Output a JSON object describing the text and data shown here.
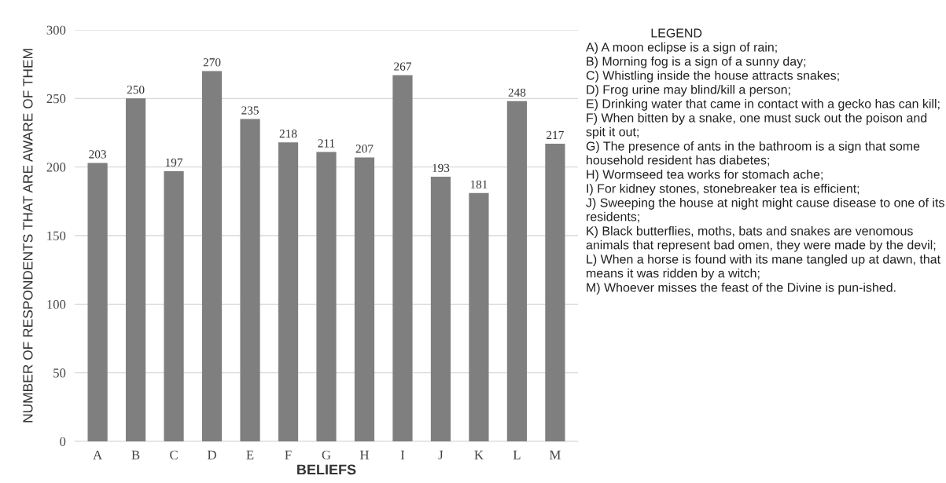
{
  "chart_data": {
    "type": "bar",
    "xlabel": "BELIEFS",
    "ylabel": "NUMBER OF RESPONDENTS THAT ARE AWARE OF THEM",
    "categories": [
      "A",
      "B",
      "C",
      "D",
      "E",
      "F",
      "G",
      "H",
      "I",
      "J",
      "K",
      "L",
      "M"
    ],
    "values": [
      203,
      250,
      197,
      270,
      235,
      218,
      211,
      207,
      267,
      193,
      181,
      248,
      217
    ],
    "color": "#7f7f7f",
    "data_labels": true,
    "ylim": [
      0,
      300
    ],
    "yticks": [
      0,
      50,
      100,
      150,
      200,
      250,
      300
    ],
    "grid": "y",
    "legend": false,
    "annotations": [
      "LEGEND",
      "A) A moon eclipse is a sign of rain;",
      "B) Morning fog is a sign of a sunny day;",
      "C) Whistling inside the house attracts snakes;",
      "D) Frog urine may blind/kill a person;",
      "E) Drinking water that came in contact with a gecko has can kill;",
      "F) When bitten by a snake, one must suck out the poison and spit it out;",
      "G) The presence of ants in the bathroom is a sign that some household resident has diabetes;",
      "H) Wormseed tea works for stomach ache;",
      "I) For kidney stones, stonebreaker tea is efficient;",
      "J) Sweeping the house at night might cause disease to one of its residents;",
      "K) Black butterflies, moths, bats and snakes are venomous animals that represent bad omen, they were made by the devil;",
      "L) When a horse is found with its mane tangled up at dawn, that means it was ridden by a witch;",
      "M) Whoever misses the feast of the Divine is pun-ished."
    ]
  }
}
